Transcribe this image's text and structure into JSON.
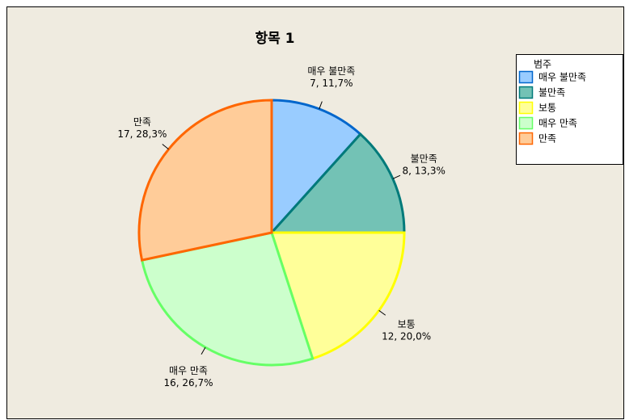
{
  "chart_data": {
    "type": "pie",
    "title": "항목 1",
    "legend_title": "범주",
    "legend": "top-right",
    "categories": [
      "매우 불만족",
      "불만족",
      "보통",
      "매우 만족",
      "만족"
    ],
    "values": [
      7,
      8,
      12,
      16,
      17
    ],
    "value_labels": [
      "7, 11,7%",
      "8, 13,3%",
      "12, 20,0%",
      "16, 26,7%",
      "17, 28,3%"
    ],
    "colors": [
      "#99ccff",
      "#73c2b5",
      "#ffff99",
      "#ccffcc",
      "#ffcc99"
    ],
    "edge_colors": [
      "#0066cc",
      "#007a7a",
      "#ffff00",
      "#66ff66",
      "#ff6600"
    ]
  }
}
